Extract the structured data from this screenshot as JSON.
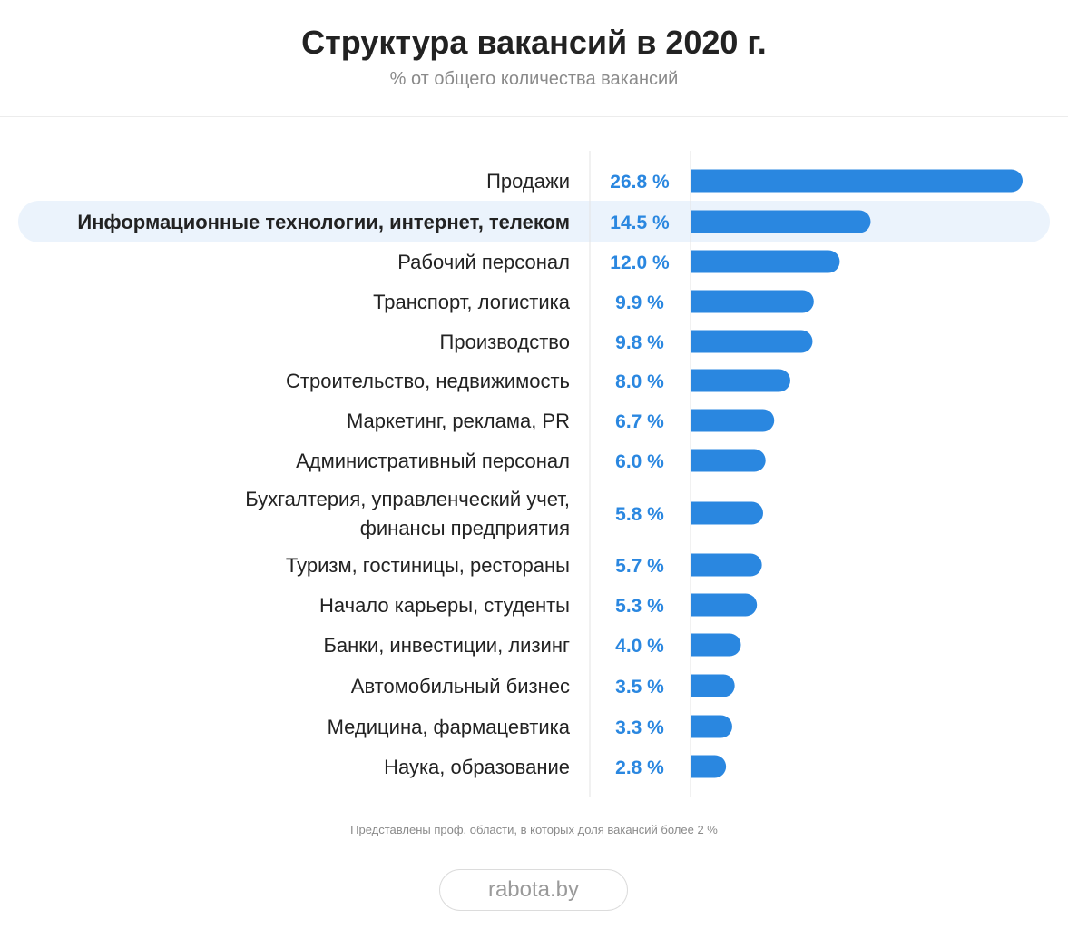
{
  "chart_data": {
    "type": "bar",
    "orientation": "horizontal",
    "title": "Структура вакансий в 2020 г.",
    "subtitle": "% от общего количества вакансий",
    "value_suffix": " %",
    "categories": [
      "Продажи",
      "Информационные технологии, интернет, телеком",
      "Рабочий персонал",
      "Транспорт, логистика",
      "Производство",
      "Строительство, недвижимость",
      "Маркетинг, реклама, PR",
      "Административный персонал",
      "Бухгалтерия, управленческий учет,\nфинансы предприятия",
      "Туризм, гостиницы, рестораны",
      "Начало карьеры, студенты",
      "Банки, инвестиции, лизинг",
      "Автомобильный бизнес",
      "Медицина, фармацевтика",
      "Наука, образование"
    ],
    "values": [
      26.8,
      14.5,
      12.0,
      9.9,
      9.8,
      8.0,
      6.7,
      6.0,
      5.8,
      5.7,
      5.3,
      4.0,
      3.5,
      3.3,
      2.8
    ],
    "value_labels": [
      "26.8 %",
      "14.5 %",
      "12.0 %",
      "9.9 %",
      "9.8 %",
      "8.0 %",
      "6.7 %",
      "6.0 %",
      "5.8 %",
      "5.7 %",
      "5.3 %",
      "4.0 %",
      "3.5 %",
      "3.3 %",
      "2.8 %"
    ],
    "highlighted_category": "Информационные технологии, интернет, телеком",
    "grid": false,
    "legend": "none",
    "colors": {
      "bar": "#2a87e0",
      "value_text": "#2a87e0",
      "highlight_bg": "#ebf3fc",
      "label_text": "#222222",
      "rule": "#e3e3e3"
    }
  },
  "footnote": "Представлены проф. области, в которых доля вакансий более 2 %",
  "brand": "rabota.by"
}
